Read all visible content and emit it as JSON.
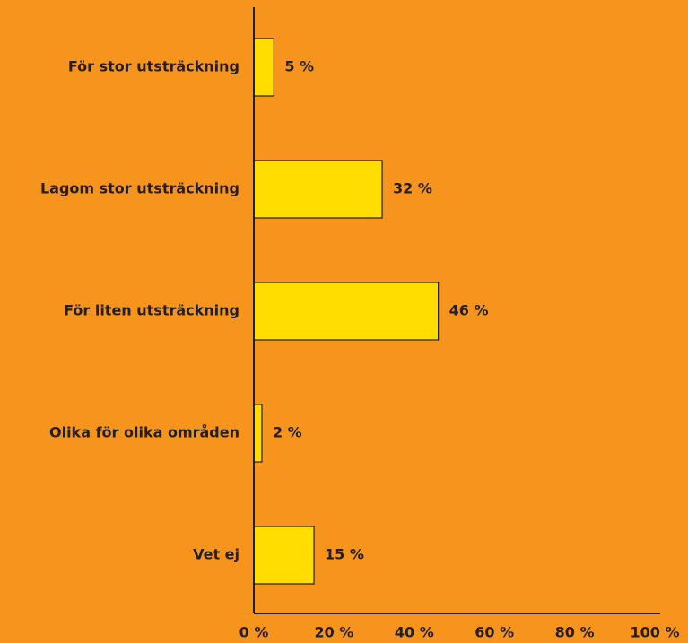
{
  "chart_data": {
    "type": "hbar",
    "categories": [
      "För stor utsträckning",
      "Lagom stor utsträckning",
      "För liten utsträckning",
      "Olika för olika områden",
      "Vet ej"
    ],
    "values": [
      5,
      32,
      46,
      2,
      15
    ],
    "value_labels": [
      "5 %",
      "32 %",
      "46 %",
      "2 %",
      "15 %"
    ],
    "color": "#ffdd00",
    "xlim": [
      0,
      100
    ],
    "xticks": [
      {
        "value": 0,
        "label": "0 %"
      },
      {
        "value": 20,
        "label": "20 %"
      },
      {
        "value": 40,
        "label": "40 %"
      },
      {
        "value": 60,
        "label": "60 %"
      },
      {
        "value": 80,
        "label": "80 %"
      },
      {
        "value": 100,
        "label": "100 %"
      }
    ],
    "grid": false
  }
}
